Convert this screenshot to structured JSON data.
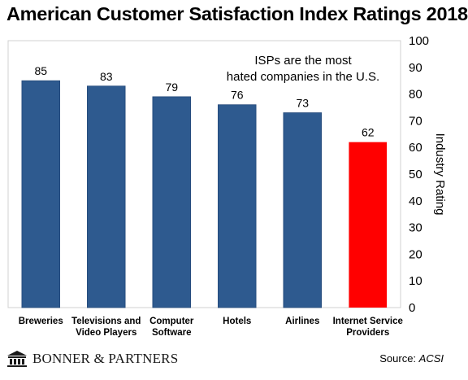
{
  "chart_data": {
    "type": "bar",
    "title": "American Customer Satisfaction Index Ratings 2018",
    "annotation": "ISPs are the most hated companies in the U.S.",
    "categories": [
      [
        "Breweries"
      ],
      [
        "Televisions and",
        "Video Players"
      ],
      [
        "Computer",
        "Software"
      ],
      [
        "Hotels"
      ],
      [
        "Airlines"
      ],
      [
        "Internet Service",
        "Providers"
      ]
    ],
    "values": [
      85,
      83,
      79,
      76,
      73,
      62
    ],
    "value_labels": [
      "85",
      "83",
      "79",
      "76",
      "73",
      "62"
    ],
    "bar_colors": [
      "#2e5a8f",
      "#2e5a8f",
      "#2e5a8f",
      "#2e5a8f",
      "#2e5a8f",
      "#ff0000"
    ],
    "xlabel": "",
    "ylabel": "Industry Rating",
    "ylim": [
      0,
      100
    ],
    "yticks": [
      "0",
      "10",
      "20",
      "30",
      "40",
      "50",
      "60",
      "70",
      "80",
      "90",
      "100"
    ],
    "y_axis_position": "right",
    "grid": false,
    "legend": "none"
  },
  "footer": {
    "publisher": "BONNER & PARTNERS",
    "source_label": "Source: ",
    "source_value": "ACSI"
  }
}
